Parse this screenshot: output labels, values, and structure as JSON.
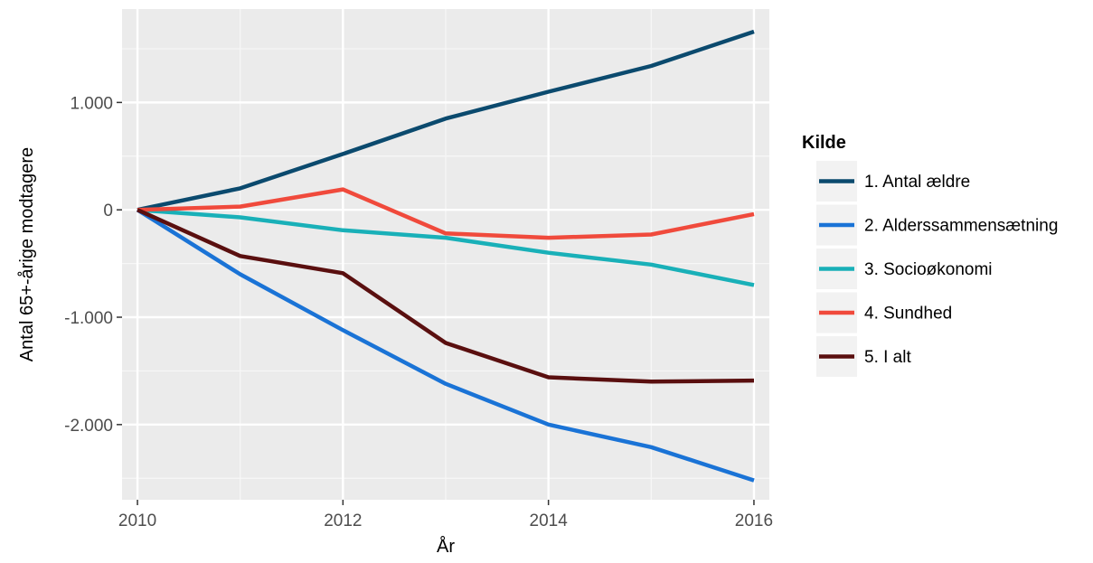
{
  "chart_data": {
    "type": "line",
    "title": "",
    "xlabel": "År",
    "ylabel": "Antal 65+-årige modtagere",
    "x": [
      2010,
      2011,
      2012,
      2013,
      2014,
      2015,
      2016
    ],
    "xlim": [
      2009.85,
      2016.15
    ],
    "ylim": [
      -2700,
      1870
    ],
    "x_ticks": [
      2010,
      2012,
      2014,
      2016
    ],
    "x_tick_labels": [
      "2010",
      "2012",
      "2014",
      "2016"
    ],
    "y_ticks": [
      1000,
      0,
      -1000,
      -2000
    ],
    "y_tick_labels": [
      "1.000",
      "0",
      "-1.000",
      "-2.000"
    ],
    "grid": true,
    "legend": {
      "title": "Kilde",
      "position": "right"
    },
    "series": [
      {
        "name": "1. Antal ældre",
        "color": "#0b4a6e",
        "values": [
          0,
          200,
          520,
          850,
          1100,
          1340,
          1660
        ]
      },
      {
        "name": "2. Alderssammensætning",
        "color": "#1a73d6",
        "values": [
          0,
          -600,
          -1120,
          -1620,
          -2000,
          -2210,
          -2520
        ]
      },
      {
        "name": "3. Socioøkonomi",
        "color": "#19b0b8",
        "values": [
          0,
          -70,
          -190,
          -260,
          -400,
          -510,
          -700
        ]
      },
      {
        "name": "4. Sundhed",
        "color": "#f04a3c",
        "values": [
          0,
          30,
          190,
          -220,
          -260,
          -230,
          -40
        ]
      },
      {
        "name": "5. I alt",
        "color": "#5a0f0f",
        "values": [
          0,
          -430,
          -590,
          -1240,
          -1560,
          -1600,
          -1590
        ]
      }
    ]
  }
}
